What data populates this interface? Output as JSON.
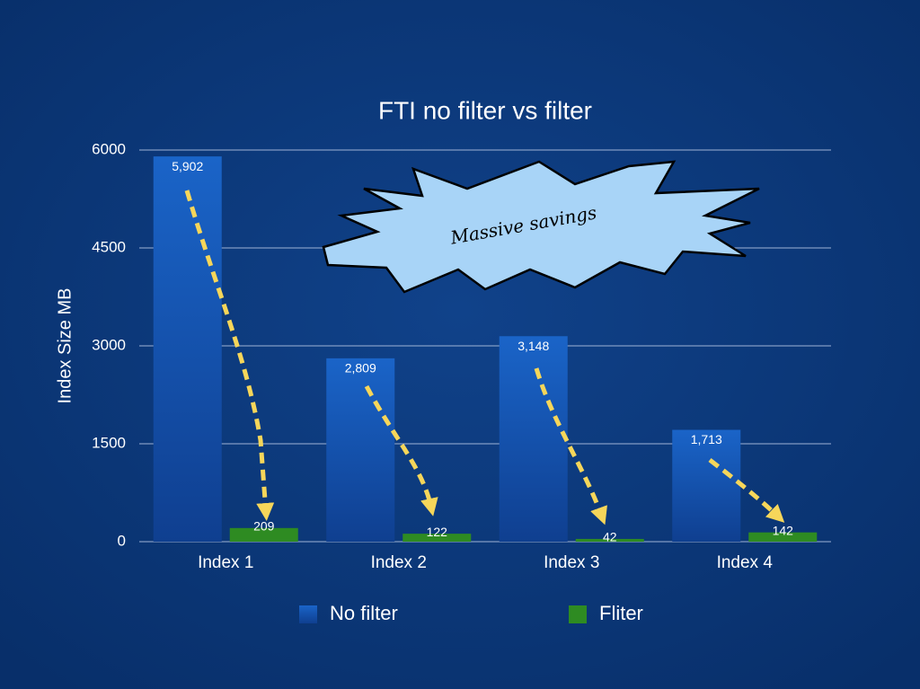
{
  "chart_data": {
    "type": "bar",
    "title": "FTI no filter vs filter",
    "y_label": "Index Size MB",
    "annotation": "Massive savings",
    "categories": [
      "Index 1",
      "Index 2",
      "Index 3",
      "Index 4"
    ],
    "series": [
      {
        "name": "No filter",
        "color": "#1659b8",
        "values": [
          5902,
          2809,
          3148,
          1713
        ],
        "value_labels": [
          "5,902",
          "2,809",
          "3,148",
          "1,713"
        ]
      },
      {
        "name": "Fliter",
        "color": "#2e8b22",
        "values": [
          209,
          122,
          42,
          142
        ]
      }
    ],
    "ylim": [
      0,
      6000
    ],
    "yticks": [
      0,
      1500,
      3000,
      4500,
      6000
    ],
    "grid": true,
    "legend": "bottom"
  }
}
